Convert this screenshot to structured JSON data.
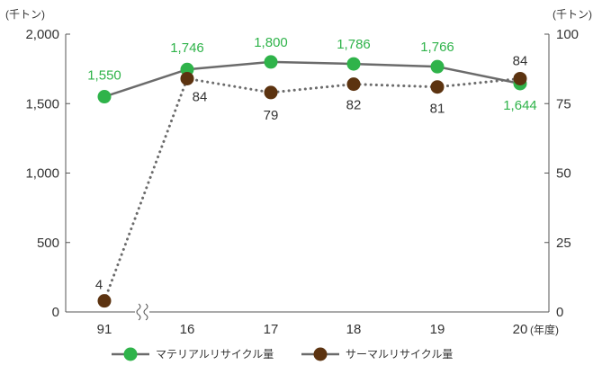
{
  "chart_data": {
    "type": "line",
    "categories": [
      "91",
      "16",
      "17",
      "18",
      "19",
      "20"
    ],
    "x_unit": "(年度)",
    "y_left": {
      "unit": "(千トン)",
      "range": [
        0,
        2000
      ],
      "ticks": [
        "0",
        "500",
        "1,000",
        "1,500",
        "2,000"
      ]
    },
    "y_right": {
      "unit": "(千トン)",
      "range": [
        0,
        100
      ],
      "ticks": [
        "0",
        "25",
        "50",
        "75",
        "100"
      ]
    },
    "series": [
      {
        "name": "マテリアルリサイクル量",
        "axis": "left",
        "color": "#2fb34a",
        "line_color": "#6b6b6b",
        "line_style": "solid",
        "values": [
          1550,
          1746,
          1800,
          1786,
          1766,
          1644
        ],
        "labels": [
          "1,550",
          "1,746",
          "1,800",
          "1,786",
          "1,766",
          "1,644"
        ]
      },
      {
        "name": "サーマルリサイクル量",
        "axis": "right",
        "color": "#5c3310",
        "line_color": "#6b6b6b",
        "line_style": "dotted",
        "values": [
          4,
          84,
          79,
          82,
          81,
          84
        ],
        "labels": [
          "4",
          "84",
          "79",
          "82",
          "81",
          "84"
        ]
      }
    ],
    "axis_break_after_first_category": true,
    "grid": false,
    "legend_position": "bottom"
  }
}
